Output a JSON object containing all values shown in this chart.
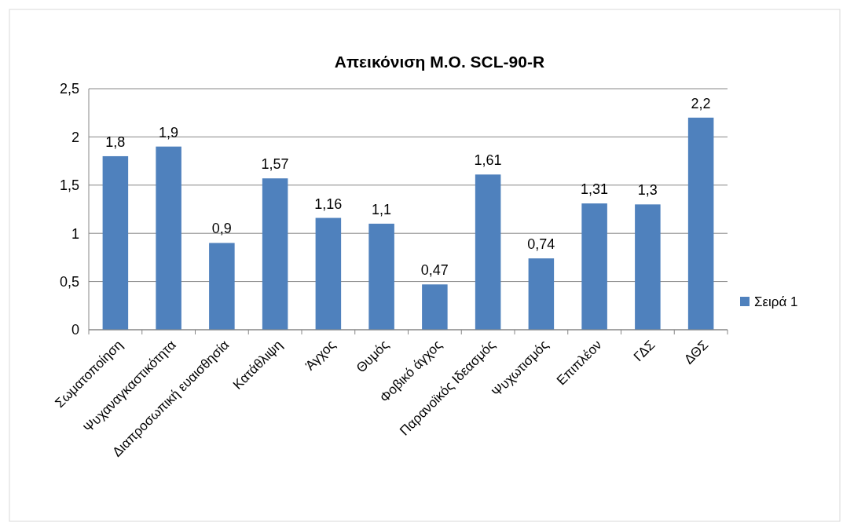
{
  "chart_data": {
    "type": "bar",
    "title": "Απεικόνιση Μ.Ο. SCL-90-R",
    "categories": [
      "Σωματοποίηση",
      "Ψυχαναγκαστικότητα",
      "Διαπροσωπική ευαισθησία",
      "Κατάθλιψη",
      "Άγχος",
      "Θυμός",
      "Φοβικό άγχος",
      "Παρανοϊκός Ιδεασμός",
      "Ψυχωτισμός",
      "Επιπλέον",
      "ΓΔΣ",
      "ΔΘΣ"
    ],
    "series": [
      {
        "name": "Σειρά 1",
        "color": "#4f81bd",
        "values": [
          1.8,
          1.9,
          0.9,
          1.57,
          1.16,
          1.1,
          0.47,
          1.61,
          0.74,
          1.31,
          1.3,
          2.2
        ],
        "value_labels": [
          "1,8",
          "1,9",
          "0,9",
          "1,57",
          "1,16",
          "1,1",
          "0,47",
          "1,61",
          "0,74",
          "1,31",
          "1,3",
          "2,2"
        ]
      }
    ],
    "ylim": [
      0,
      2.5
    ],
    "yticks": [
      0,
      {
        "value": 0.5,
        "label": "0,5"
      },
      1,
      {
        "value": 1.5,
        "label": "1,5"
      },
      2,
      {
        "value": 2.5,
        "label": "2,5"
      }
    ],
    "grid": "y",
    "legend": "right"
  }
}
